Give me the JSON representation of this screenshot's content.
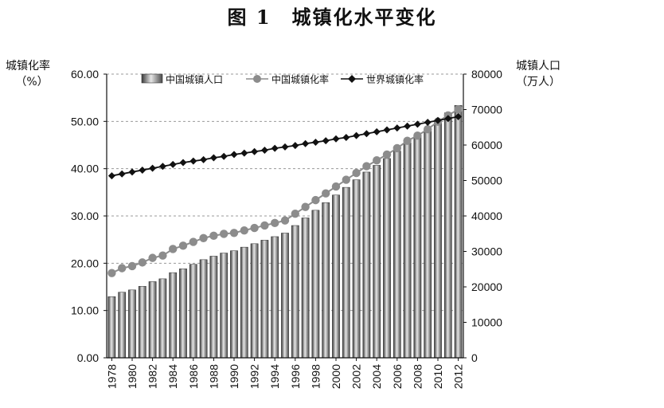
{
  "figure_title": "图 1　城镇化水平变化",
  "chart_data": {
    "type": "bar",
    "title": "图 1　城镇化水平变化",
    "x": [
      1978,
      1979,
      1980,
      1981,
      1982,
      1983,
      1984,
      1985,
      1986,
      1987,
      1988,
      1989,
      1990,
      1991,
      1992,
      1993,
      1994,
      1995,
      1996,
      1997,
      1998,
      1999,
      2000,
      2001,
      2002,
      2003,
      2004,
      2005,
      2006,
      2007,
      2008,
      2009,
      2010,
      2011,
      2012
    ],
    "x_tick_labels": [
      "1978",
      "1980",
      "1982",
      "1984",
      "1986",
      "1988",
      "1990",
      "1992",
      "1994",
      "1996",
      "1998",
      "2000",
      "2002",
      "2004",
      "2006",
      "2008",
      "2010",
      "2012"
    ],
    "y_left": {
      "label_line1": "城镇化率",
      "label_line2": "（%）",
      "range": [
        0,
        60
      ],
      "ticks": [
        "0.00",
        "10.00",
        "20.00",
        "30.00",
        "40.00",
        "50.00",
        "60.00"
      ]
    },
    "y_right": {
      "label_line1": "城镇人口",
      "label_line2": "（万人）",
      "range": [
        0,
        80000
      ],
      "ticks": [
        "0",
        "10000",
        "20000",
        "30000",
        "40000",
        "50000",
        "60000",
        "70000",
        "80000"
      ]
    },
    "grid": "horizontal dashed",
    "legend_position": "top",
    "series": [
      {
        "name": "中国城镇人口",
        "kind": "bar",
        "axis": "right",
        "values": [
          17245,
          18495,
          19140,
          20171,
          21480,
          22274,
          24017,
          25094,
          26366,
          27674,
          28661,
          29540,
          30195,
          31203,
          32175,
          33173,
          34169,
          35174,
          37304,
          39449,
          41608,
          43748,
          45906,
          48064,
          50212,
          52376,
          54283,
          56212,
          58288,
          60633,
          62403,
          64512,
          66978,
          69079,
          71182
        ]
      },
      {
        "name": "中国城镇化率",
        "kind": "line",
        "marker": "circle",
        "axis": "left",
        "color": "#8c8c8c",
        "values": [
          17.92,
          18.96,
          19.39,
          20.16,
          21.13,
          21.62,
          23.01,
          23.71,
          24.52,
          25.32,
          25.81,
          26.21,
          26.41,
          26.94,
          27.46,
          27.99,
          28.51,
          29.04,
          30.48,
          31.91,
          33.35,
          34.78,
          36.22,
          37.66,
          39.09,
          40.53,
          41.76,
          42.99,
          44.34,
          45.89,
          46.99,
          48.34,
          49.95,
          51.27,
          52.57
        ]
      },
      {
        "name": "世界城镇化率",
        "kind": "line",
        "marker": "diamond",
        "axis": "left",
        "color": "#111111",
        "values": [
          38.5,
          38.9,
          39.3,
          39.7,
          40.1,
          40.5,
          40.9,
          41.3,
          41.6,
          41.9,
          42.3,
          42.6,
          43.0,
          43.3,
          43.6,
          43.9,
          44.3,
          44.6,
          44.9,
          45.3,
          45.6,
          45.9,
          46.3,
          46.6,
          47.0,
          47.4,
          47.8,
          48.2,
          48.6,
          49.0,
          49.4,
          49.8,
          50.2,
          50.6,
          51.0
        ]
      }
    ]
  }
}
